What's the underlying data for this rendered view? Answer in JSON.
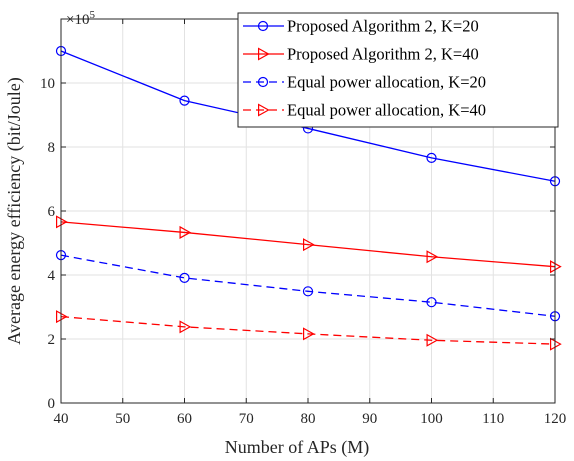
{
  "chart_data": {
    "type": "line",
    "xlabel": "Number of APs (M)",
    "ylabel": "Average energy efficiency (bit/Joule)",
    "y_exponent_label": "×10",
    "y_exponent_power": "5",
    "xlim": [
      40,
      120
    ],
    "ylim": [
      0,
      12
    ],
    "x_ticks": [
      40,
      50,
      60,
      70,
      80,
      90,
      100,
      110,
      120
    ],
    "y_ticks": [
      0,
      2,
      4,
      6,
      8,
      10
    ],
    "grid": true,
    "legend_position": "top-right",
    "x": [
      40,
      60,
      80,
      100,
      120
    ],
    "series": [
      {
        "name": "Proposed Algorithm 2, K=20",
        "values": [
          11.0,
          9.45,
          8.58,
          7.66,
          6.93
        ],
        "color": "#0000ff",
        "dash": "solid",
        "marker": "circle"
      },
      {
        "name": "Proposed Algorithm 2, K=40",
        "values": [
          5.66,
          5.33,
          4.95,
          4.57,
          4.26
        ],
        "color": "#ff0000",
        "dash": "solid",
        "marker": "triangle-right"
      },
      {
        "name": "Equal power allocation, K=20",
        "values": [
          4.62,
          3.91,
          3.49,
          3.15,
          2.71
        ],
        "color": "#0000ff",
        "dash": "dashed",
        "marker": "circle"
      },
      {
        "name": "Equal power allocation, K=40",
        "values": [
          2.7,
          2.38,
          2.16,
          1.96,
          1.84
        ],
        "color": "#ff0000",
        "dash": "dashed",
        "marker": "triangle-right"
      }
    ]
  }
}
